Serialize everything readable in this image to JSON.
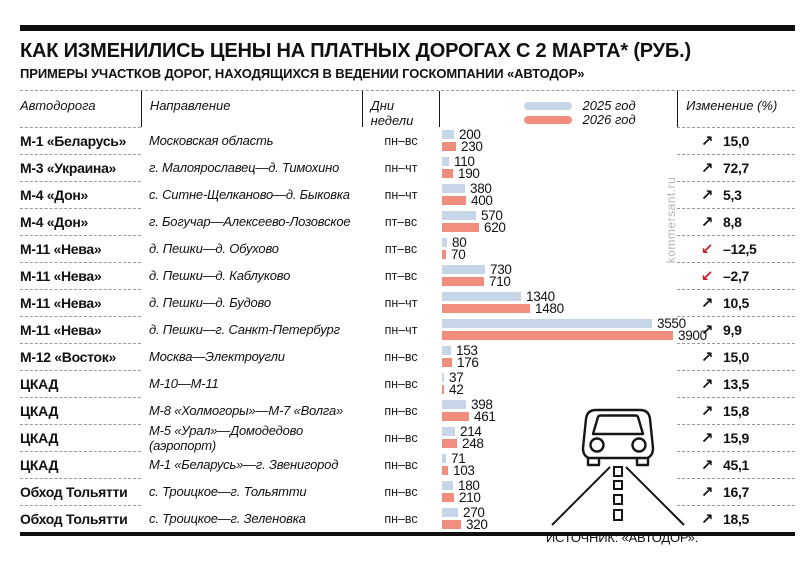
{
  "header": {
    "title": "КАК ИЗМЕНИЛИСЬ ЦЕНЫ НА ПЛАТНЫХ ДОРОГАХ С 2 МАРТА* (РУБ.)",
    "subtitle": "ПРИМЕРЫ УЧАСТКОВ ДОРОГ, НАХОДЯЩИХСЯ В ВЕДЕНИИ ГОСКОМПАНИИ «АВТОДОР»"
  },
  "columns": {
    "road": "Автодорога",
    "direction": "Направление",
    "days": "Дни недели",
    "change": "Изменение (%)"
  },
  "legend": [
    {
      "label": "2025 год"
    },
    {
      "label": "2026 год"
    }
  ],
  "colors": {
    "bar_2025": "#c6d5e8",
    "bar_2026": "#f18d7d",
    "arrow_down": "#c32031",
    "rule": "#0f0f0f",
    "watermark": "#b5b5b5"
  },
  "icons": {
    "trend_up": "↗",
    "trend_down": "↙",
    "illustration": "car-front-on-perspective-road"
  },
  "rows": [
    {
      "road": "М-1 «Беларусь»",
      "direction": "Московская область",
      "days": "пн–вс",
      "price_2025": "200",
      "price_2026": "230",
      "change": "15,0",
      "trend": "up"
    },
    {
      "road": "М-3 «Украина»",
      "direction": "г. Малоярославец—д. Тимохино",
      "days": "пн–чт",
      "price_2025": "110",
      "price_2026": "190",
      "change": "72,7",
      "trend": "up"
    },
    {
      "road": "М-4 «Дон»",
      "direction": "с. Ситне-Щелканово—д. Быковка",
      "days": "пн–чт",
      "price_2025": "380",
      "price_2026": "400",
      "change": "5,3",
      "trend": "up"
    },
    {
      "road": "М-4 «Дон»",
      "direction": "г. Богучар—Алексеево-Лозовское",
      "days": "пт–вс",
      "price_2025": "570",
      "price_2026": "620",
      "change": "8,8",
      "trend": "up"
    },
    {
      "road": "М-11 «Нева»",
      "direction": "д. Пешки—д. Обухово",
      "days": "пт–вс",
      "price_2025": "80",
      "price_2026": "70",
      "change": "–12,5",
      "trend": "down"
    },
    {
      "road": "М-11 «Нева»",
      "direction": "д. Пешки—д. Каблуково",
      "days": "пт–вс",
      "price_2025": "730",
      "price_2026": "710",
      "change": "–2,7",
      "trend": "down"
    },
    {
      "road": "М-11 «Нева»",
      "direction": "д. Пешки—д. Будово",
      "days": "пн–чт",
      "price_2025": "1340",
      "price_2026": "1480",
      "change": "10,5",
      "trend": "up"
    },
    {
      "road": "М-11 «Нева»",
      "direction": "д. Пешки—г. Санкт-Петербург",
      "days": "пн–чт",
      "price_2025": "3550",
      "price_2026": "3900",
      "change": "9,9",
      "trend": "up"
    },
    {
      "road": "М-12 «Восток»",
      "direction": "Москва—Электроугли",
      "days": "пн–вс",
      "price_2025": "153",
      "price_2026": "176",
      "change": "15,0",
      "trend": "up"
    },
    {
      "road": "ЦКАД",
      "direction": "М-10—М-11",
      "days": "пн–вс",
      "price_2025": "37",
      "price_2026": "42",
      "change": "13,5",
      "trend": "up"
    },
    {
      "road": "ЦКАД",
      "direction": "М-8 «Холмогоры»—М-7 «Волга»",
      "days": "пн–вс",
      "price_2025": "398",
      "price_2026": "461",
      "change": "15,8",
      "trend": "up"
    },
    {
      "road": "ЦКАД",
      "direction": "М-5 «Урал»—Домодедово (аэропорт)",
      "days": "пн–вс",
      "price_2025": "214",
      "price_2026": "248",
      "change": "15,9",
      "trend": "up"
    },
    {
      "road": "ЦКАД",
      "direction": "М-1 «Беларусь»—г. Звенигород",
      "days": "пн–вс",
      "price_2025": "71",
      "price_2026": "103",
      "change": "45,1",
      "trend": "up"
    },
    {
      "road": "Обход Тольятти",
      "direction": "с. Троицкое—г. Тольятти",
      "days": "пн–вс",
      "price_2025": "180",
      "price_2026": "210",
      "change": "16,7",
      "trend": "up"
    },
    {
      "road": "Обход Тольятти",
      "direction": "с. Троицкое—г. Зеленовка",
      "days": "пн–вс",
      "price_2025": "270",
      "price_2026": "320",
      "change": "18,5",
      "trend": "up"
    }
  ],
  "chart_data": {
    "type": "bar",
    "orientation": "horizontal",
    "title": "КАК ИЗМЕНИЛИСЬ ЦЕНЫ НА ПЛАТНЫХ ДОРОГАХ С 2 МАРТА* (РУБ.)",
    "subtitle": "ПРИМЕРЫ УЧАСТКОВ ДОРОГ, НАХОДЯЩИХСЯ В ВЕДЕНИИ ГОСКОМПАНИИ «АВТОДОР»",
    "categories": [
      "М-1 «Беларусь» — Московская область",
      "М-3 «Украина» — г. Малоярославец—д. Тимохино",
      "М-4 «Дон» — с. Ситне-Щелканово—д. Быковка",
      "М-4 «Дон» — г. Богучар—Алексеево-Лозовское",
      "М-11 «Нева» — д. Пешки—д. Обухово",
      "М-11 «Нева» — д. Пешки—д. Каблуково",
      "М-11 «Нева» — д. Пешки—д. Будово",
      "М-11 «Нева» — д. Пешки—г. Санкт-Петербург",
      "М-12 «Восток» — Москва—Электроугли",
      "ЦКАД — М-10—М-11",
      "ЦКАД — М-8 «Холмогоры»—М-7 «Волга»",
      "ЦКАД — М-5 «Урал»—Домодедово (аэропорт)",
      "ЦКАД — М-1 «Беларусь»—г. Звенигород",
      "Обход Тольятти — с. Троицкое—г. Тольятти",
      "Обход Тольятти — с. Троицкое—г. Зеленовка"
    ],
    "series": [
      {
        "name": "2025 год",
        "values": [
          200,
          110,
          380,
          570,
          80,
          730,
          1340,
          3550,
          153,
          37,
          398,
          214,
          71,
          180,
          270
        ]
      },
      {
        "name": "2026 год",
        "values": [
          230,
          190,
          400,
          620,
          70,
          710,
          1480,
          3900,
          176,
          42,
          461,
          248,
          103,
          210,
          320
        ]
      }
    ],
    "change_pct": [
      15.0,
      72.7,
      5.3,
      8.8,
      -12.5,
      -2.7,
      10.5,
      9.9,
      15.0,
      13.5,
      15.8,
      15.9,
      45.1,
      16.7,
      18.5
    ],
    "xlim": [
      0,
      3900
    ],
    "grid": false,
    "legend_position": "top"
  },
  "footer": {
    "source": "ИСТОЧНИК: «АВТОДОР».",
    "watermark": "kommersant.ru"
  }
}
